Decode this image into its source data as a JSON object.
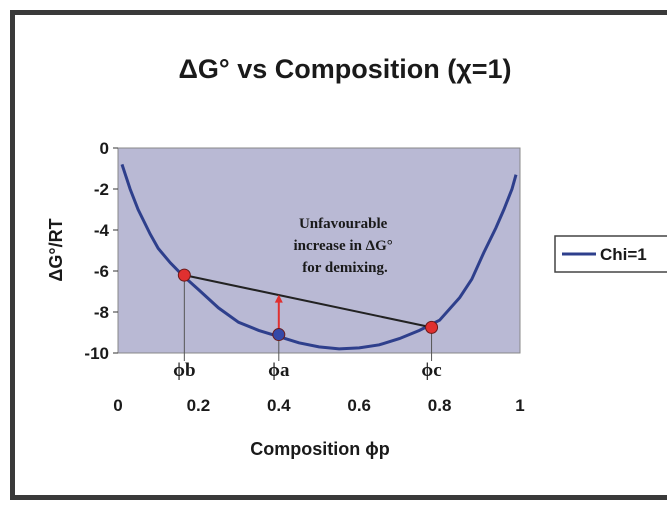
{
  "chart_data": {
    "type": "line",
    "title": "ΔG° vs Composition (χ=1)",
    "xlabel": "Composition ϕp",
    "ylabel": "ΔG°/RT",
    "xlim": [
      0,
      1
    ],
    "ylim": [
      -10,
      0
    ],
    "x_ticks": [
      "0",
      "0.2",
      "0.4",
      "0.6",
      "0.8",
      "1"
    ],
    "y_ticks": [
      "0",
      "-2",
      "-4",
      "-6",
      "-8",
      "-10"
    ],
    "grid": false,
    "legend_position": "right",
    "plot_background": "#b9b9d4",
    "series": [
      {
        "name": "Chi=1",
        "color": "#2e3f8c",
        "x": [
          0.01,
          0.03,
          0.05,
          0.08,
          0.1,
          0.13,
          0.16,
          0.2,
          0.25,
          0.3,
          0.35,
          0.4,
          0.45,
          0.5,
          0.55,
          0.6,
          0.65,
          0.7,
          0.75,
          0.8,
          0.85,
          0.88,
          0.91,
          0.94,
          0.96,
          0.98,
          0.99
        ],
        "y": [
          -0.8,
          -2.0,
          -3.0,
          -4.2,
          -4.9,
          -5.6,
          -6.2,
          -6.9,
          -7.8,
          -8.5,
          -8.9,
          -9.2,
          -9.5,
          -9.7,
          -9.8,
          -9.75,
          -9.6,
          -9.3,
          -8.9,
          -8.4,
          -7.3,
          -6.4,
          -5.1,
          -3.9,
          -3.0,
          -2.0,
          -1.3
        ]
      }
    ],
    "tangent_line": {
      "from": [
        0.165,
        -6.2
      ],
      "to": [
        0.78,
        -8.75
      ],
      "color": "#222222"
    },
    "points": [
      {
        "label": "ϕb",
        "x": 0.165,
        "y": -6.2,
        "color": "#e03030"
      },
      {
        "label": "ϕa",
        "x": 0.4,
        "y": -9.1,
        "color": "#3548a8"
      },
      {
        "label": "ϕc",
        "x": 0.78,
        "y": -8.75,
        "color": "#e03030"
      }
    ],
    "arrow": {
      "x": 0.4,
      "from_y": -9.1,
      "to_y": -7.2,
      "color": "#e03030"
    },
    "annotation": [
      "Unfavourable",
      "increase in ΔG°",
      "for demixing."
    ],
    "legend_label": "Chi=1"
  }
}
